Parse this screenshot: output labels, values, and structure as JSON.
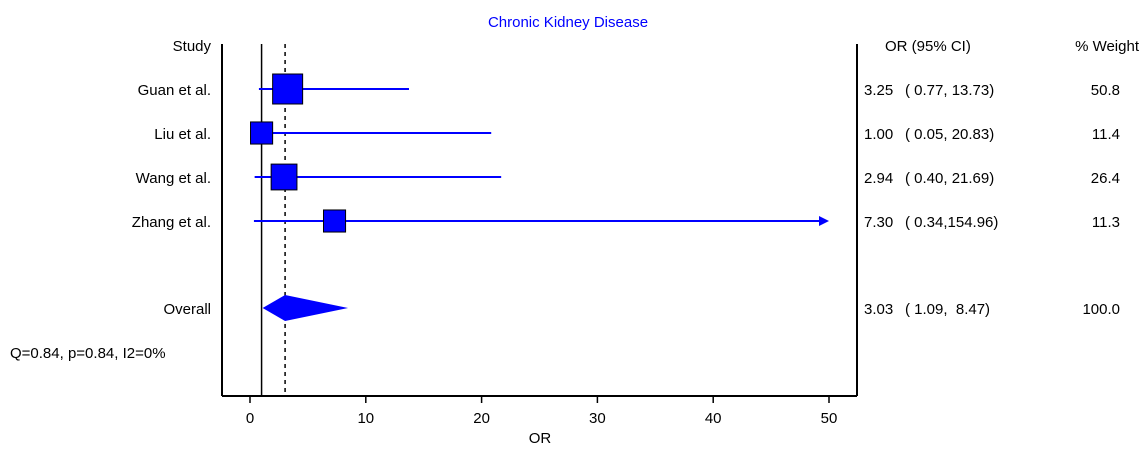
{
  "chart_data": {
    "type": "forest",
    "title": "Chronic Kidney Disease",
    "xlabel": "OR",
    "xlim": [
      -2.5,
      52
    ],
    "xticks": [
      0,
      10,
      20,
      30,
      40,
      50
    ],
    "reference_line": 1,
    "overall_line": 3.03,
    "columns": {
      "study": "Study",
      "or_ci": "OR (95% CI)",
      "weight": "% Weight"
    },
    "studies": [
      {
        "name": "Guan et al.",
        "or": 3.25,
        "ci_low": 0.77,
        "ci_high": 13.73,
        "or_text": "3.25",
        "ci_text": "( 0.77, 13.73)",
        "weight": 50.8,
        "weight_text": "50.8"
      },
      {
        "name": "Liu et al.",
        "or": 1.0,
        "ci_low": 0.05,
        "ci_high": 20.83,
        "or_text": "1.00",
        "ci_text": "( 0.05, 20.83)",
        "weight": 11.4,
        "weight_text": "11.4"
      },
      {
        "name": "Wang et al.",
        "or": 2.94,
        "ci_low": 0.4,
        "ci_high": 21.69,
        "or_text": "2.94",
        "ci_text": "( 0.40, 21.69)",
        "weight": 26.4,
        "weight_text": "26.4"
      },
      {
        "name": "Zhang et al.",
        "or": 7.3,
        "ci_low": 0.34,
        "ci_high": 154.96,
        "or_text": "7.30",
        "ci_text": "( 0.34,154.96)",
        "weight": 11.3,
        "weight_text": "11.3"
      }
    ],
    "overall": {
      "name": "Overall",
      "or": 3.03,
      "ci_low": 1.09,
      "ci_high": 8.47,
      "or_text": "3.03",
      "ci_text": "( 1.09,  8.47)",
      "weight_text": "100.0"
    },
    "heterogeneity": "Q=0.84, p=0.84, I2=0%",
    "colors": {
      "marker": "#0000ff",
      "title": "#0000ff",
      "axis": "#000000"
    }
  }
}
